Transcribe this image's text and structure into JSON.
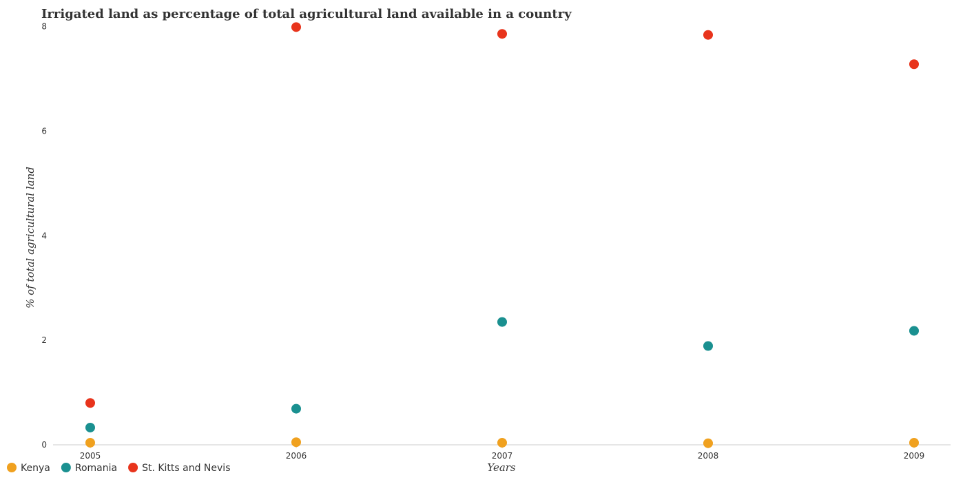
{
  "chart_data": {
    "type": "scatter",
    "title": "Irrigated land as percentage of total agricultural land available in a country",
    "xlabel": "Years",
    "ylabel": "% of total agricultural land",
    "categories": [
      "2005",
      "2006",
      "2007",
      "2008",
      "2009"
    ],
    "ylim": [
      0,
      8.35
    ],
    "yticks": [
      "0",
      "2",
      "4",
      "6",
      "8"
    ],
    "grid": false,
    "legend_position": "bottom-left",
    "series": [
      {
        "name": "Kenya",
        "color": "#f0a11f",
        "values": [
          0.04,
          0.05,
          0.04,
          0.03,
          0.04
        ]
      },
      {
        "name": "Romania",
        "color": "#1a9090",
        "values": [
          0.33,
          0.69,
          2.35,
          1.89,
          2.18
        ]
      },
      {
        "name": "St. Kitts and Nevis",
        "color": "#e8341c",
        "values": [
          0.8,
          7.99,
          7.86,
          7.84,
          7.28
        ]
      }
    ]
  }
}
